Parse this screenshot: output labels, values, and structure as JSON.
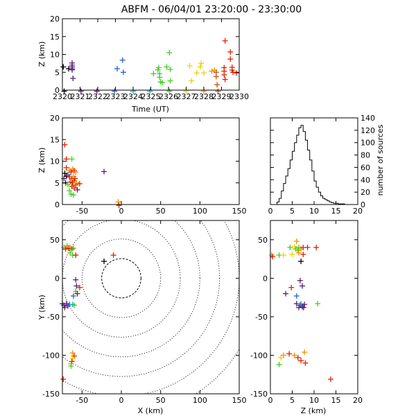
{
  "title": "ABFM - 06/04/01 23:20:00 - 23:30:00",
  "colors": {
    "black": "#000000",
    "purple": "#5a1a78",
    "blue": "#2060d0",
    "cyan": "#00b8d8",
    "green": "#40d020",
    "yellow": "#f0d000",
    "orange": "#f09000",
    "red": "#e02000",
    "brown": "#c05010"
  },
  "chart_data": [
    {
      "type": "scatter",
      "panel": "time-height",
      "xlabel": "Time (UT)",
      "ylabel": "Z (km)",
      "xlim": [
        2320,
        2330
      ],
      "ylim": [
        0,
        20
      ],
      "xticks": [
        2320,
        2321,
        2322,
        2323,
        2324,
        2325,
        2326,
        2327,
        2328,
        2329,
        2330
      ],
      "yticks": [
        0,
        5,
        10,
        15,
        20
      ],
      "points": [
        {
          "x": 2320.05,
          "y": 6.5,
          "c": "black"
        },
        {
          "x": 2320.1,
          "y": -0.3,
          "c": "black"
        },
        {
          "x": 2320.35,
          "y": 6.0,
          "c": "black"
        },
        {
          "x": 2320.55,
          "y": 7.6,
          "c": "purple"
        },
        {
          "x": 2320.55,
          "y": 7.0,
          "c": "purple"
        },
        {
          "x": 2320.55,
          "y": 6.5,
          "c": "purple"
        },
        {
          "x": 2320.55,
          "y": 6.0,
          "c": "purple"
        },
        {
          "x": 2320.55,
          "y": 5.7,
          "c": "purple"
        },
        {
          "x": 2320.6,
          "y": 3.3,
          "c": "purple"
        },
        {
          "x": 2321.05,
          "y": -0.3,
          "c": "purple"
        },
        {
          "x": 2321.95,
          "y": -0.3,
          "c": "purple"
        },
        {
          "x": 2322.95,
          "y": -0.3,
          "c": "blue"
        },
        {
          "x": 2323.1,
          "y": 6.0,
          "c": "blue"
        },
        {
          "x": 2323.4,
          "y": 8.4,
          "c": "blue"
        },
        {
          "x": 2323.45,
          "y": 5.0,
          "c": "blue"
        },
        {
          "x": 2324.0,
          "y": -0.3,
          "c": "cyan"
        },
        {
          "x": 2324.95,
          "y": -0.3,
          "c": "cyan"
        },
        {
          "x": 2325.15,
          "y": 4.6,
          "c": "green"
        },
        {
          "x": 2325.4,
          "y": 5.7,
          "c": "green"
        },
        {
          "x": 2325.45,
          "y": 6.3,
          "c": "green"
        },
        {
          "x": 2325.5,
          "y": 4.6,
          "c": "green"
        },
        {
          "x": 2325.5,
          "y": 3.6,
          "c": "green"
        },
        {
          "x": 2325.55,
          "y": 2.3,
          "c": "green"
        },
        {
          "x": 2325.65,
          "y": 2.1,
          "c": "green"
        },
        {
          "x": 2325.9,
          "y": 6.5,
          "c": "green"
        },
        {
          "x": 2326.05,
          "y": 10.5,
          "c": "green"
        },
        {
          "x": 2326.1,
          "y": 5.8,
          "c": "green"
        },
        {
          "x": 2326.1,
          "y": 2.6,
          "c": "green"
        },
        {
          "x": 2326.05,
          "y": -0.3,
          "c": "green"
        },
        {
          "x": 2327.0,
          "y": -0.3,
          "c": "yellow"
        },
        {
          "x": 2327.2,
          "y": 6.8,
          "c": "yellow"
        },
        {
          "x": 2327.3,
          "y": 2.6,
          "c": "yellow"
        },
        {
          "x": 2327.6,
          "y": 4.8,
          "c": "yellow"
        },
        {
          "x": 2327.8,
          "y": 6.5,
          "c": "yellow"
        },
        {
          "x": 2327.85,
          "y": 7.5,
          "c": "yellow"
        },
        {
          "x": 2328.0,
          "y": 4.8,
          "c": "yellow"
        },
        {
          "x": 2328.0,
          "y": -0.3,
          "c": "orange"
        },
        {
          "x": 2328.45,
          "y": 5.3,
          "c": "orange"
        },
        {
          "x": 2328.6,
          "y": 5.6,
          "c": "orange"
        },
        {
          "x": 2328.7,
          "y": 5.0,
          "c": "brown"
        },
        {
          "x": 2328.7,
          "y": 3.8,
          "c": "brown"
        },
        {
          "x": 2328.75,
          "y": 1.5,
          "c": "brown"
        },
        {
          "x": 2328.8,
          "y": -0.3,
          "c": "brown"
        },
        {
          "x": 2329.2,
          "y": 13.8,
          "c": "red"
        },
        {
          "x": 2329.15,
          "y": 6.3,
          "c": "red"
        },
        {
          "x": 2329.15,
          "y": 5.3,
          "c": "red"
        },
        {
          "x": 2329.15,
          "y": 4.3,
          "c": "red"
        },
        {
          "x": 2329.2,
          "y": 3.0,
          "c": "red"
        },
        {
          "x": 2329.5,
          "y": 10.7,
          "c": "red"
        },
        {
          "x": 2329.5,
          "y": 8.7,
          "c": "red"
        },
        {
          "x": 2329.6,
          "y": 6.4,
          "c": "red"
        },
        {
          "x": 2329.6,
          "y": 5.6,
          "c": "red"
        },
        {
          "x": 2329.65,
          "y": 5.0,
          "c": "red"
        },
        {
          "x": 2329.85,
          "y": 4.8,
          "c": "red"
        }
      ]
    },
    {
      "type": "scatter",
      "panel": "x-height",
      "xlabel": "",
      "ylabel": "Z (km)",
      "xlim": [
        -75,
        150
      ],
      "ylim": [
        0,
        20
      ],
      "xticks": [
        -50,
        0,
        50,
        100,
        150
      ],
      "yticks": [
        0,
        5,
        10,
        15,
        20
      ],
      "points": [
        {
          "x": -72,
          "y": 13.8,
          "c": "red"
        },
        {
          "x": -70,
          "y": 10.5,
          "c": "red"
        },
        {
          "x": -63,
          "y": 10.5,
          "c": "green"
        },
        {
          "x": -70,
          "y": 8.5,
          "c": "red"
        },
        {
          "x": -72,
          "y": 7.2,
          "c": "black"
        },
        {
          "x": -70,
          "y": 6.5,
          "c": "black"
        },
        {
          "x": -73,
          "y": 6.0,
          "c": "purple"
        },
        {
          "x": -68,
          "y": 6.8,
          "c": "blue"
        },
        {
          "x": -71,
          "y": 5.0,
          "c": "black"
        },
        {
          "x": -66,
          "y": 7.9,
          "c": "orange"
        },
        {
          "x": -64,
          "y": 7.5,
          "c": "red"
        },
        {
          "x": -62,
          "y": 8.2,
          "c": "orange"
        },
        {
          "x": -60,
          "y": 7.8,
          "c": "red"
        },
        {
          "x": -58,
          "y": 7.5,
          "c": "orange"
        },
        {
          "x": -66,
          "y": 6.4,
          "c": "red"
        },
        {
          "x": -63,
          "y": 6.0,
          "c": "red"
        },
        {
          "x": -61,
          "y": 6.5,
          "c": "orange"
        },
        {
          "x": -59,
          "y": 6.0,
          "c": "red"
        },
        {
          "x": -65,
          "y": 5.2,
          "c": "red"
        },
        {
          "x": -62,
          "y": 5.0,
          "c": "red"
        },
        {
          "x": -60,
          "y": 5.5,
          "c": "red"
        },
        {
          "x": -58,
          "y": 4.5,
          "c": "red"
        },
        {
          "x": -63,
          "y": 4.2,
          "c": "red"
        },
        {
          "x": -60,
          "y": 3.8,
          "c": "red"
        },
        {
          "x": -57,
          "y": 5.0,
          "c": "orange"
        },
        {
          "x": -53,
          "y": 4.8,
          "c": "red"
        },
        {
          "x": -56,
          "y": 3.4,
          "c": "purple"
        },
        {
          "x": -66,
          "y": 3.2,
          "c": "green"
        },
        {
          "x": -64,
          "y": 2.4,
          "c": "green"
        },
        {
          "x": -61,
          "y": 2.2,
          "c": "green"
        },
        {
          "x": -68,
          "y": 4.6,
          "c": "green"
        },
        {
          "x": -22,
          "y": 7.6,
          "c": "purple"
        },
        {
          "x": -4,
          "y": 0.6,
          "c": "orange"
        },
        {
          "x": -3,
          "y": -0.2,
          "c": "red"
        }
      ]
    },
    {
      "type": "bar",
      "panel": "height-histogram",
      "xlabel": "",
      "ylabel": "number of sources",
      "xlim": [
        0,
        20
      ],
      "ylim": [
        0,
        140
      ],
      "xticks": [
        0,
        5,
        10,
        15,
        20
      ],
      "yticks": [
        0,
        20,
        40,
        60,
        80,
        100,
        120,
        140
      ],
      "bin_edges": [
        1.5,
        2,
        2.5,
        3,
        3.5,
        4,
        4.5,
        5,
        5.5,
        6,
        6.5,
        7,
        7.5,
        8,
        8.5,
        9,
        9.5,
        10,
        10.5,
        11,
        11.5,
        12,
        12.5,
        13,
        13.5,
        14,
        14.5,
        15,
        15.5,
        16,
        16.5,
        17,
        17.5
      ],
      "counts": [
        4,
        10,
        22,
        34,
        46,
        58,
        72,
        86,
        100,
        112,
        124,
        128,
        118,
        104,
        88,
        72,
        54,
        38,
        28,
        20,
        14,
        10,
        8,
        6,
        4,
        3,
        2,
        2,
        1,
        1,
        1,
        0
      ]
    },
    {
      "type": "scatter",
      "panel": "plan-view",
      "xlabel": "X (km)",
      "ylabel": "Y (km)",
      "xlim": [
        -75,
        150
      ],
      "ylim": [
        -150,
        75
      ],
      "xticks": [
        -50,
        0,
        50,
        100,
        150
      ],
      "yticks": [
        -150,
        -100,
        -50,
        0,
        50
      ],
      "range_rings_km": [
        25,
        50,
        75,
        100,
        125,
        150,
        175
      ],
      "points": [
        {
          "x": -73,
          "y": 40,
          "c": "orange"
        },
        {
          "x": -71,
          "y": 38,
          "c": "red"
        },
        {
          "x": -69,
          "y": 42,
          "c": "green"
        },
        {
          "x": -67,
          "y": 39,
          "c": "red"
        },
        {
          "x": -65,
          "y": 40,
          "c": "orange"
        },
        {
          "x": -63,
          "y": 38,
          "c": "red"
        },
        {
          "x": -61,
          "y": 39,
          "c": "green"
        },
        {
          "x": -65,
          "y": 33,
          "c": "green"
        },
        {
          "x": -62,
          "y": 30,
          "c": "green"
        },
        {
          "x": -58,
          "y": 30,
          "c": "red"
        },
        {
          "x": -22,
          "y": 22,
          "c": "black"
        },
        {
          "x": -10,
          "y": 30,
          "c": "red"
        },
        {
          "x": -58,
          "y": -2,
          "c": "purple"
        },
        {
          "x": -57,
          "y": -10,
          "c": "purple"
        },
        {
          "x": -53,
          "y": -12,
          "c": "red"
        },
        {
          "x": -58,
          "y": -17,
          "c": "green"
        },
        {
          "x": -56,
          "y": -20,
          "c": "purple"
        },
        {
          "x": -61,
          "y": -23,
          "c": "blue"
        },
        {
          "x": -75,
          "y": -33,
          "c": "purple"
        },
        {
          "x": -73,
          "y": -35,
          "c": "purple"
        },
        {
          "x": -70,
          "y": -33,
          "c": "purple"
        },
        {
          "x": -68,
          "y": -36,
          "c": "purple"
        },
        {
          "x": -72,
          "y": -38,
          "c": "purple"
        },
        {
          "x": -66,
          "y": -34,
          "c": "blue"
        },
        {
          "x": -62,
          "y": -34,
          "c": "cyan"
        },
        {
          "x": -60,
          "y": -35,
          "c": "green"
        },
        {
          "x": -62,
          "y": -97,
          "c": "orange"
        },
        {
          "x": -60,
          "y": -101,
          "c": "red"
        },
        {
          "x": -62,
          "y": -104,
          "c": "yellow"
        },
        {
          "x": -63,
          "y": -108,
          "c": "red"
        },
        {
          "x": -64,
          "y": -111,
          "c": "orange"
        },
        {
          "x": -64,
          "y": -114,
          "c": "green"
        },
        {
          "x": -74,
          "y": -131,
          "c": "red"
        }
      ]
    },
    {
      "type": "scatter",
      "panel": "height-y",
      "xlabel": "Z (km)",
      "ylabel": "",
      "xlim": [
        0,
        20
      ],
      "ylim": [
        -150,
        75
      ],
      "xticks": [
        0,
        5,
        10,
        15,
        20
      ],
      "yticks": [
        -150,
        -100,
        -50,
        0,
        50
      ],
      "points": [
        {
          "x": 0.3,
          "y": 30,
          "c": "orange"
        },
        {
          "x": 0.5,
          "y": 28,
          "c": "red"
        },
        {
          "x": 2.0,
          "y": 30,
          "c": "green"
        },
        {
          "x": 3.0,
          "y": 30,
          "c": "yellow"
        },
        {
          "x": 4.5,
          "y": 40,
          "c": "green"
        },
        {
          "x": 5.5,
          "y": 41,
          "c": "yellow"
        },
        {
          "x": 6.0,
          "y": 48,
          "c": "orange"
        },
        {
          "x": 6.5,
          "y": 40,
          "c": "green"
        },
        {
          "x": 7.0,
          "y": 38,
          "c": "orange"
        },
        {
          "x": 5.8,
          "y": 38,
          "c": "green"
        },
        {
          "x": 6.3,
          "y": 36,
          "c": "green"
        },
        {
          "x": 7.5,
          "y": 40,
          "c": "red"
        },
        {
          "x": 8.5,
          "y": 40,
          "c": "red"
        },
        {
          "x": 10.5,
          "y": 40,
          "c": "red"
        },
        {
          "x": 6.5,
          "y": 33,
          "c": "orange"
        },
        {
          "x": 7.5,
          "y": 31,
          "c": "red"
        },
        {
          "x": 5.0,
          "y": 31,
          "c": "yellow"
        },
        {
          "x": 7.0,
          "y": 22,
          "c": "black"
        },
        {
          "x": 6.8,
          "y": -3,
          "c": "purple"
        },
        {
          "x": 7.3,
          "y": -10,
          "c": "purple"
        },
        {
          "x": 4.8,
          "y": -12,
          "c": "red"
        },
        {
          "x": 3.5,
          "y": -20,
          "c": "purple"
        },
        {
          "x": 6.0,
          "y": -23,
          "c": "blue"
        },
        {
          "x": 6.0,
          "y": -33,
          "c": "purple"
        },
        {
          "x": 6.8,
          "y": -35,
          "c": "purple"
        },
        {
          "x": 7.3,
          "y": -37,
          "c": "purple"
        },
        {
          "x": 7.8,
          "y": -34,
          "c": "purple"
        },
        {
          "x": 6.5,
          "y": -38,
          "c": "purple"
        },
        {
          "x": 7.6,
          "y": -38,
          "c": "purple"
        },
        {
          "x": 7.0,
          "y": -33,
          "c": "cyan"
        },
        {
          "x": 10.8,
          "y": -33,
          "c": "green"
        },
        {
          "x": 2.4,
          "y": -103,
          "c": "yellow"
        },
        {
          "x": 3.0,
          "y": -100,
          "c": "orange"
        },
        {
          "x": 4.3,
          "y": -98,
          "c": "red"
        },
        {
          "x": 5.5,
          "y": -100,
          "c": "orange"
        },
        {
          "x": 7.8,
          "y": -96,
          "c": "orange"
        },
        {
          "x": 8.0,
          "y": -110,
          "c": "red"
        },
        {
          "x": 6.3,
          "y": -103,
          "c": "red"
        },
        {
          "x": 7.0,
          "y": -107,
          "c": "red"
        },
        {
          "x": 2.0,
          "y": -112,
          "c": "green"
        },
        {
          "x": 13.8,
          "y": -131,
          "c": "red"
        }
      ]
    }
  ]
}
